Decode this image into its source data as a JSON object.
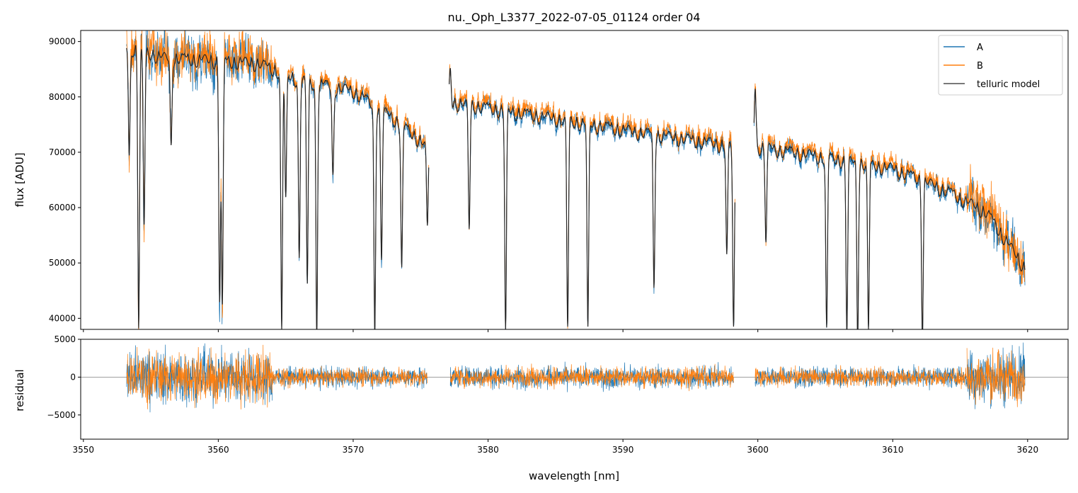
{
  "chart_data": {
    "type": "line",
    "title": "nu._Oph_L3377_2022-07-05_01124  order 04",
    "xlabel": "wavelength [nm]",
    "xlim": [
      3549.8,
      3623
    ],
    "xticks": [
      3550,
      3560,
      3570,
      3580,
      3590,
      3600,
      3610,
      3620
    ],
    "colors": {
      "A": "#1f77b4",
      "B": "#ff7f0e",
      "telluric": "#4d4d4d",
      "residual_line": "#808080"
    },
    "legend": {
      "placement": "top-right",
      "entries": [
        "A",
        "B",
        "telluric model"
      ]
    },
    "top_panel": {
      "ylabel": "flux [ADU]",
      "ylim": [
        38000,
        92000
      ],
      "yticks": [
        40000,
        50000,
        60000,
        70000,
        80000,
        90000
      ],
      "continuum": [
        [
          3553.2,
          90000
        ],
        [
          3556,
          88000
        ],
        [
          3560,
          87500
        ],
        [
          3563,
          87000
        ],
        [
          3566,
          84000
        ],
        [
          3570,
          82000
        ],
        [
          3573,
          77000
        ],
        [
          3575.5,
          72000
        ],
        [
          3577.2,
          80000
        ],
        [
          3585,
          77000
        ],
        [
          3590,
          75000
        ],
        [
          3598.2,
          72000
        ],
        [
          3599.8,
          72000
        ],
        [
          3605,
          70000
        ],
        [
          3610,
          68000
        ],
        [
          3614,
          64000
        ],
        [
          3617,
          60000
        ],
        [
          3619.8,
          50000
        ]
      ],
      "absorption_lines": [
        [
          3553.4,
          70000
        ],
        [
          3554.1,
          40000
        ],
        [
          3554.5,
          57000
        ],
        [
          3556.5,
          72000
        ],
        [
          3560.1,
          45000
        ],
        [
          3560.3,
          43000
        ],
        [
          3564.7,
          38500
        ],
        [
          3565,
          62000
        ],
        [
          3566,
          52000
        ],
        [
          3566.6,
          47000
        ],
        [
          3567.3,
          38500
        ],
        [
          3568.5,
          66000
        ],
        [
          3571.6,
          38500
        ],
        [
          3572.1,
          52000
        ],
        [
          3573.6,
          50000
        ],
        [
          3575.5,
          57000
        ],
        [
          3577.2,
          86000
        ],
        [
          3578.6,
          57000
        ],
        [
          3581.3,
          38500
        ],
        [
          3585.9,
          38500
        ],
        [
          3587.4,
          38500
        ],
        [
          3592.3,
          47000
        ],
        [
          3597.7,
          52000
        ],
        [
          3598.2,
          38500
        ],
        [
          3599.8,
          83000
        ],
        [
          3600.6,
          55000
        ],
        [
          3605.1,
          38500
        ],
        [
          3606.6,
          38500
        ],
        [
          3607.4,
          38500
        ],
        [
          3608.2,
          38500
        ],
        [
          3612.2,
          39000
        ]
      ],
      "gaps": [
        [
          3575.6,
          3577.1
        ],
        [
          3598.3,
          3599.7
        ]
      ]
    },
    "bottom_panel": {
      "ylabel": "residual",
      "ylim": [
        -8200,
        5000
      ],
      "yticks": [
        -5000,
        0,
        5000
      ],
      "residual_scatter_by_region": [
        [
          3553.2,
          3564,
          5000
        ],
        [
          3564,
          3575.5,
          1800
        ],
        [
          3577.2,
          3598.2,
          2000
        ],
        [
          3599.8,
          3615.5,
          1800
        ],
        [
          3615.5,
          3619.8,
          5000
        ]
      ]
    }
  }
}
